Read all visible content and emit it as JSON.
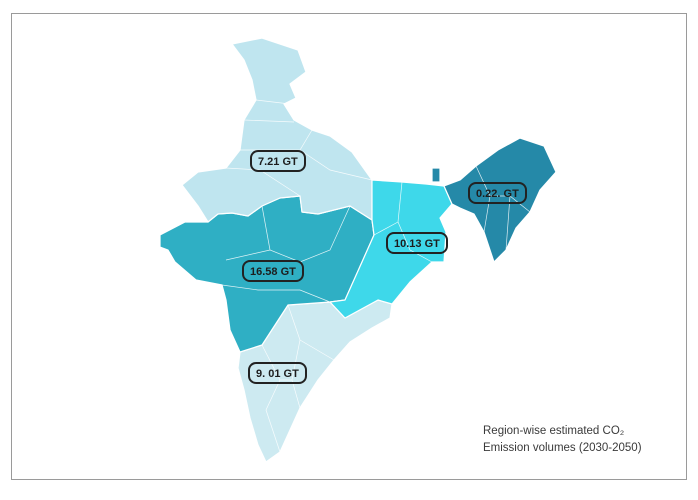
{
  "regions": [
    {
      "id": "north",
      "label": "7.21 GT",
      "color": "#bfe5ef"
    },
    {
      "id": "west-central",
      "label": "16.58 GT",
      "color": "#2fafc4"
    },
    {
      "id": "east",
      "label": "10.13 GT",
      "color": "#3ed8ea"
    },
    {
      "id": "north-east",
      "label": "0.22. GT",
      "color": "#2589a8"
    },
    {
      "id": "south",
      "label": "9. 01 GT",
      "color": "#cdeaf1"
    }
  ],
  "caption": {
    "line1": "Region-wise estimated CO₂",
    "line2": "Emission volumes (2030-2050)"
  }
}
